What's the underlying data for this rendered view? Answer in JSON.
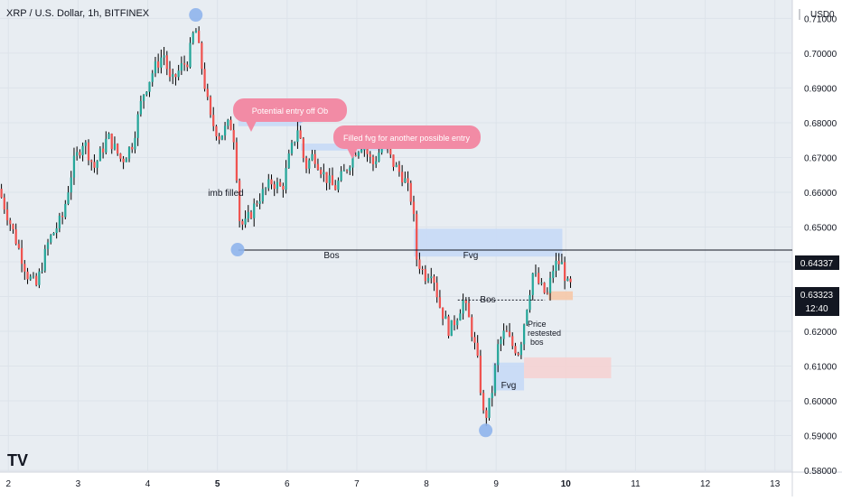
{
  "header": {
    "symbol_title": "XRP / U.S. Dollar, 1h, BITFINEX",
    "currency": "USD",
    "currency_count": "0"
  },
  "price_axis": {
    "current_price": "0.63323",
    "countdown": "12:40",
    "bos_level_label": "0.64337"
  },
  "annotations": {
    "callout_1": "Potential entry off Ob",
    "callout_2": "Filled fvg for another possible entry",
    "imb_filled": "imb filled",
    "bos_1": "Bos",
    "fvg_1": "Fvg",
    "bos_2": "Bos",
    "fvg_2": "Fvg",
    "price_retest_1": "Price",
    "price_retest_2": "restested",
    "price_retest_3": "bos"
  },
  "colors": {
    "background": "#e8edf2",
    "up": "#26a69a",
    "down": "#ef5350",
    "wick": "#000000",
    "zone_blue": "#c6d9f6",
    "zone_pink": "#f5d1d3",
    "zone_orange": "#f6c8a8",
    "callout": "#f28ba5",
    "marker": "#8fb4ec"
  },
  "chart_data": {
    "type": "candlestick",
    "title": "XRP / U.S. Dollar, 1h, BITFINEX",
    "x_unit": "day",
    "xlim": [
      1.88,
      13.25
    ],
    "ylim": [
      0.5795,
      0.7153
    ],
    "x_ticks": [
      "2",
      "3",
      "4",
      "5",
      "6",
      "7",
      "8",
      "9",
      "10",
      "11",
      "12",
      "13"
    ],
    "y_ticks": [
      "0.58000",
      "0.59000",
      "0.60000",
      "0.61000",
      "0.62000",
      "0.63000",
      "0.64000",
      "0.65000",
      "0.66000",
      "0.67000",
      "0.68000",
      "0.69000",
      "0.70000",
      "0.71000"
    ],
    "grid": true,
    "price_path": [
      [
        1.88,
        0.661
      ],
      [
        2.1,
        0.648
      ],
      [
        2.3,
        0.636
      ],
      [
        2.42,
        0.633
      ],
      [
        2.6,
        0.646
      ],
      [
        2.8,
        0.653
      ],
      [
        2.95,
        0.668
      ],
      [
        3.1,
        0.675
      ],
      [
        3.25,
        0.667
      ],
      [
        3.45,
        0.676
      ],
      [
        3.65,
        0.669
      ],
      [
        3.8,
        0.674
      ],
      [
        3.95,
        0.688
      ],
      [
        4.1,
        0.695
      ],
      [
        4.25,
        0.7
      ],
      [
        4.35,
        0.691
      ],
      [
        4.5,
        0.696
      ],
      [
        4.6,
        0.698
      ],
      [
        4.7,
        0.708
      ],
      [
        4.82,
        0.693
      ],
      [
        4.92,
        0.681
      ],
      [
        5.05,
        0.676
      ],
      [
        5.2,
        0.68
      ],
      [
        5.28,
        0.674
      ],
      [
        5.32,
        0.653
      ],
      [
        5.4,
        0.65
      ],
      [
        5.6,
        0.658
      ],
      [
        5.8,
        0.663
      ],
      [
        5.95,
        0.661
      ],
      [
        6.05,
        0.67
      ],
      [
        6.18,
        0.679
      ],
      [
        6.28,
        0.667
      ],
      [
        6.4,
        0.671
      ],
      [
        6.55,
        0.665
      ],
      [
        6.7,
        0.661
      ],
      [
        6.85,
        0.666
      ],
      [
        7.0,
        0.672
      ],
      [
        7.1,
        0.674
      ],
      [
        7.25,
        0.668
      ],
      [
        7.4,
        0.674
      ],
      [
        7.55,
        0.668
      ],
      [
        7.7,
        0.664
      ],
      [
        7.82,
        0.657
      ],
      [
        7.88,
        0.641
      ],
      [
        8.0,
        0.636
      ],
      [
        8.1,
        0.638
      ],
      [
        8.2,
        0.628
      ],
      [
        8.35,
        0.62
      ],
      [
        8.45,
        0.624
      ],
      [
        8.55,
        0.629
      ],
      [
        8.65,
        0.622
      ],
      [
        8.75,
        0.612
      ],
      [
        8.85,
        0.594
      ],
      [
        8.95,
        0.601
      ],
      [
        9.05,
        0.616
      ],
      [
        9.15,
        0.62
      ],
      [
        9.25,
        0.616
      ],
      [
        9.35,
        0.614
      ],
      [
        9.45,
        0.626
      ],
      [
        9.55,
        0.637
      ],
      [
        9.65,
        0.633
      ],
      [
        9.75,
        0.63
      ],
      [
        9.85,
        0.639
      ],
      [
        9.95,
        0.64
      ],
      [
        10.05,
        0.633
      ]
    ],
    "zones": [
      {
        "kind": "blue",
        "x": [
          5.3,
          6.2
        ],
        "y": [
          0.679,
          0.6825
        ]
      },
      {
        "kind": "blue",
        "x": [
          6.2,
          7.45
        ],
        "y": [
          0.672,
          0.674
        ]
      },
      {
        "kind": "blue",
        "x": [
          7.82,
          9.95
        ],
        "y": [
          0.6415,
          0.6495
        ]
      },
      {
        "kind": "blue",
        "x": [
          8.95,
          9.4
        ],
        "y": [
          0.603,
          0.611
        ]
      },
      {
        "kind": "pink",
        "x": [
          9.4,
          10.65
        ],
        "y": [
          0.6065,
          0.6125
        ]
      },
      {
        "kind": "orange",
        "x": [
          9.75,
          10.1
        ],
        "y": [
          0.629,
          0.6315
        ]
      }
    ],
    "lines": [
      {
        "name": "bos-level",
        "y": 0.64337,
        "x": [
          5.3,
          13.25
        ]
      },
      {
        "name": "bos-dotted",
        "y": 0.629,
        "x": [
          8.45,
          9.7
        ]
      }
    ],
    "markers": [
      {
        "x": 4.69,
        "y": 0.711
      },
      {
        "x": 5.29,
        "y": 0.6435
      },
      {
        "x": 6.19,
        "y": 0.682
      },
      {
        "x": 8.85,
        "y": 0.5915
      }
    ]
  }
}
